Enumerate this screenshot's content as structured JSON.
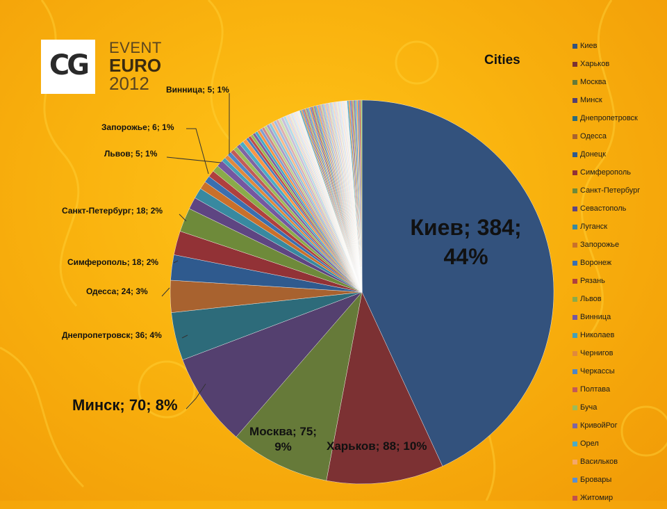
{
  "logo": {
    "monogram": "CG",
    "line1": "EVENT",
    "line2": "EURO",
    "line3": "2012"
  },
  "chart_data": {
    "type": "pie",
    "title": "Cities",
    "legend_position": "right",
    "labeled_slices": [
      {
        "name": "Киев",
        "value": 384,
        "percent": "44%",
        "label": "Киев; 384; 44%",
        "color": "#33527d"
      },
      {
        "name": "Харьков",
        "value": 88,
        "percent": "10%",
        "label": "Харьков; 88; 10%",
        "color": "#7c3133"
      },
      {
        "name": "Москва",
        "value": 75,
        "percent": "9%",
        "label": "Москва; 75; 9%",
        "color": "#667a39"
      },
      {
        "name": "Минск",
        "value": 70,
        "percent": "8%",
        "label": "Минск; 70; 8%",
        "color": "#54406f"
      },
      {
        "name": "Днепропетровск",
        "value": 36,
        "percent": "4%",
        "label": "Днепропетровск; 36; 4%",
        "color": "#2d6b7a"
      },
      {
        "name": "Одесса",
        "value": 24,
        "percent": "3%",
        "label": "Одесса; 24; 3%",
        "color": "#a8622f"
      },
      {
        "name": "Донецк",
        "value": 19,
        "percent": "",
        "label": "",
        "color": "#2f5a8e"
      },
      {
        "name": "Симферополь",
        "value": 18,
        "percent": "2%",
        "label": "Симферополь; 18; 2%",
        "color": "#923236"
      },
      {
        "name": "Санкт-Петербург",
        "value": 18,
        "percent": "2%",
        "label": "Санкт-Петербург; 18; 2%",
        "color": "#6e8a3a"
      },
      {
        "name": "Севастополь",
        "value": 9,
        "percent": "",
        "label": "",
        "color": "#5e4582"
      },
      {
        "name": "Луганск",
        "value": 8,
        "percent": "",
        "label": "",
        "color": "#3889a0"
      },
      {
        "name": "Запорожье",
        "value": 6,
        "percent": "1%",
        "label": "Запорожье; 6; 1%",
        "color": "#c9702b"
      },
      {
        "name": "Воронеж",
        "value": 5,
        "percent": "",
        "label": "",
        "color": "#3a6fb0"
      },
      {
        "name": "Рязань",
        "value": 5,
        "percent": "",
        "label": "",
        "color": "#b0403e"
      },
      {
        "name": "Львов",
        "value": 5,
        "percent": "1%",
        "label": "Львов; 5; 1%",
        "color": "#8aab4a"
      },
      {
        "name": "Винница",
        "value": 5,
        "percent": "1%",
        "label": "Винница; 5; 1%",
        "color": "#7557a0"
      }
    ],
    "legend": [
      "Киев",
      "Харьков",
      "Москва",
      "Минск",
      "Днепропетровск",
      "Одесса",
      "Донецк",
      "Симферополь",
      "Санкт-Петербург",
      "Севастополь",
      "Луганск",
      "Запорожье",
      "Воронеж",
      "Рязань",
      "Львов",
      "Винница",
      "Николаев",
      "Чернигов",
      "Черкассы",
      "Полтава",
      "Буча",
      "КривойРог",
      "Орел",
      "Васильков",
      "Бровары",
      "Житомир"
    ],
    "legend_colors": [
      "#33527d",
      "#7c3133",
      "#667a39",
      "#54406f",
      "#2d6b7a",
      "#a8622f",
      "#2f5a8e",
      "#923236",
      "#6e8a3a",
      "#5e4582",
      "#3889a0",
      "#c9702b",
      "#3a6fb0",
      "#b0403e",
      "#8aab4a",
      "#7557a0",
      "#45a0b8",
      "#e0893c",
      "#4f86c6",
      "#c25a58",
      "#9bbb59",
      "#8064a2",
      "#4bacc6",
      "#f5a86a",
      "#5b8fd0",
      "#c0504d"
    ],
    "tail_values": [
      3,
      3,
      3,
      3,
      3,
      3,
      3,
      3,
      2,
      2,
      2,
      2,
      2,
      2,
      2,
      2,
      2,
      2,
      2,
      2,
      2,
      2,
      2,
      2,
      2,
      1,
      1,
      1,
      1,
      1,
      1,
      1,
      1,
      1,
      1,
      1,
      1,
      1,
      1,
      1,
      1,
      1,
      1,
      1,
      1,
      1,
      1,
      1,
      1,
      1,
      1,
      1,
      1,
      1,
      1,
      1,
      1,
      1,
      1,
      1,
      1,
      1,
      1,
      1,
      1,
      1,
      1,
      1,
      1,
      1,
      1,
      1,
      1,
      1,
      1,
      1,
      1,
      1,
      1,
      1,
      1,
      1,
      1
    ],
    "tail_colors": [
      "#45a0b8",
      "#e0893c",
      "#4f86c6",
      "#c25a58",
      "#9bbb59",
      "#8064a2",
      "#4bacc6",
      "#f79646",
      "#4a7ebb",
      "#be4b48",
      "#98b954",
      "#7d60a0",
      "#46aac5",
      "#f69240",
      "#7f9fd0",
      "#d08a88",
      "#bcd08c",
      "#ab9bc4",
      "#8dc6d8",
      "#f8b989",
      "#a4bde0",
      "#dfb0ae",
      "#d1dfb3",
      "#c9bfd9",
      "#b7dbe6",
      "#fad2b3",
      "#c7d5ec",
      "#ecd0cf",
      "#e3ecd2",
      "#ddd6e8",
      "#d4e9f0",
      "#fce2d0",
      "#e0e8f5",
      "#f4e3e2",
      "#eef3e3",
      "#ebe7f1"
    ]
  }
}
